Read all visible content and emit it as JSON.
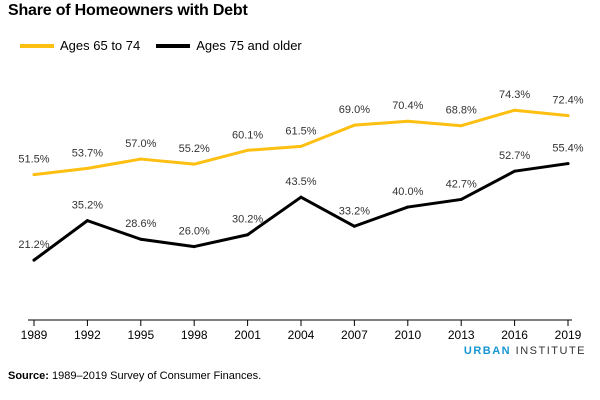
{
  "chart_data": {
    "type": "line",
    "title": "Share of Homeowners with Debt",
    "xlabel": "",
    "ylabel": "",
    "categories": [
      "1989",
      "1992",
      "1995",
      "1998",
      "2001",
      "2004",
      "2007",
      "2010",
      "2013",
      "2016",
      "2019"
    ],
    "series": [
      {
        "name": "Ages 65 to 74",
        "color": "#fdbf11",
        "values": [
          51.5,
          53.7,
          57.0,
          55.2,
          60.1,
          61.5,
          69.0,
          70.4,
          68.8,
          74.3,
          72.4
        ],
        "labels": [
          "51.5%",
          "53.7%",
          "57.0%",
          "55.2%",
          "60.1%",
          "61.5%",
          "69.0%",
          "70.4%",
          "68.8%",
          "74.3%",
          "72.4%"
        ]
      },
      {
        "name": "Ages 75 and older",
        "color": "#000000",
        "values": [
          21.2,
          35.2,
          28.6,
          26.0,
          30.2,
          43.5,
          33.2,
          40.0,
          42.7,
          52.7,
          55.4
        ],
        "labels": [
          "21.2%",
          "35.2%",
          "28.6%",
          "26.0%",
          "30.2%",
          "43.5%",
          "33.2%",
          "40.0%",
          "42.7%",
          "52.7%",
          "55.4%"
        ]
      }
    ],
    "ylim": [
      0,
      85
    ],
    "grid": false,
    "legend_position": "top-left"
  },
  "brand": {
    "part1": "URBAN",
    "part2": " INSTITUTE"
  },
  "source": {
    "label": "Source:",
    "text": " 1989–2019 Survey of Consumer Finances."
  }
}
